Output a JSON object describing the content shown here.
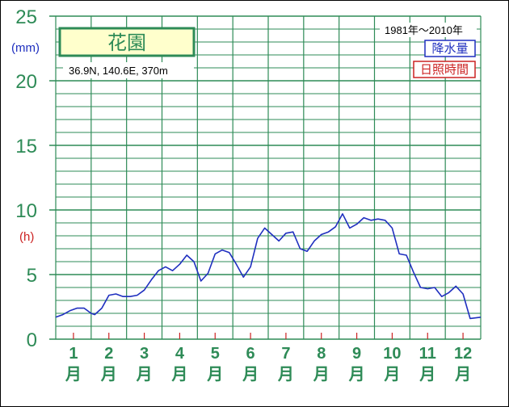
{
  "chart_data": {
    "type": "line",
    "title": "花園",
    "subtitle": "36.9N,  140.6E,  370m",
    "period": "1981年〜2010年",
    "legend": [
      {
        "label": "降水量",
        "color": "#1f2fbf"
      },
      {
        "label": "日照時間",
        "color": "#cc2222"
      }
    ],
    "y_unit_left": "(mm)",
    "y_unit_right": "(h)",
    "yticks": [
      "0",
      "5",
      "10",
      "15",
      "20",
      "25"
    ],
    "ylim": [
      0,
      25
    ],
    "xlim": [
      0.5,
      12.5
    ],
    "categories": [
      {
        "num": "1",
        "suffix": "月"
      },
      {
        "num": "2",
        "suffix": "月"
      },
      {
        "num": "3",
        "suffix": "月"
      },
      {
        "num": "4",
        "suffix": "月"
      },
      {
        "num": "5",
        "suffix": "月"
      },
      {
        "num": "6",
        "suffix": "月"
      },
      {
        "num": "7",
        "suffix": "月"
      },
      {
        "num": "8",
        "suffix": "月"
      },
      {
        "num": "9",
        "suffix": "月"
      },
      {
        "num": "10",
        "suffix": "月"
      },
      {
        "num": "11",
        "suffix": "月"
      },
      {
        "num": "12",
        "suffix": "月"
      }
    ],
    "series": [
      {
        "name": "降水量",
        "color": "#1f2fbf",
        "x": [
          0.5,
          0.7,
          0.9,
          1.1,
          1.3,
          1.5,
          1.6,
          1.8,
          2.0,
          2.2,
          2.4,
          2.6,
          2.8,
          3.0,
          3.2,
          3.4,
          3.6,
          3.8,
          4.0,
          4.2,
          4.4,
          4.6,
          4.8,
          5.0,
          5.2,
          5.4,
          5.6,
          5.8,
          6.0,
          6.2,
          6.4,
          6.6,
          6.8,
          7.0,
          7.2,
          7.4,
          7.6,
          7.8,
          8.0,
          8.2,
          8.4,
          8.6,
          8.8,
          9.0,
          9.2,
          9.4,
          9.6,
          9.8,
          10.0,
          10.2,
          10.4,
          10.6,
          10.8,
          11.0,
          11.2,
          11.4,
          11.6,
          11.8,
          12.0,
          12.2,
          12.5
        ],
        "y": [
          1.7,
          1.9,
          2.2,
          2.4,
          2.4,
          2.0,
          1.9,
          2.4,
          3.4,
          3.5,
          3.3,
          3.3,
          3.4,
          3.8,
          4.6,
          5.3,
          5.6,
          5.3,
          5.8,
          6.5,
          6.0,
          4.5,
          5.1,
          6.6,
          6.9,
          6.7,
          5.8,
          4.8,
          5.6,
          7.8,
          8.6,
          8.1,
          7.6,
          8.2,
          8.3,
          7.0,
          6.8,
          7.6,
          8.1,
          8.3,
          8.7,
          9.7,
          8.6,
          8.9,
          9.4,
          9.2,
          9.3,
          9.2,
          8.6,
          6.6,
          6.5,
          5.2,
          4.0,
          3.9,
          4.0,
          3.3,
          3.6,
          4.1,
          3.5,
          1.6,
          1.7
        ]
      }
    ]
  }
}
